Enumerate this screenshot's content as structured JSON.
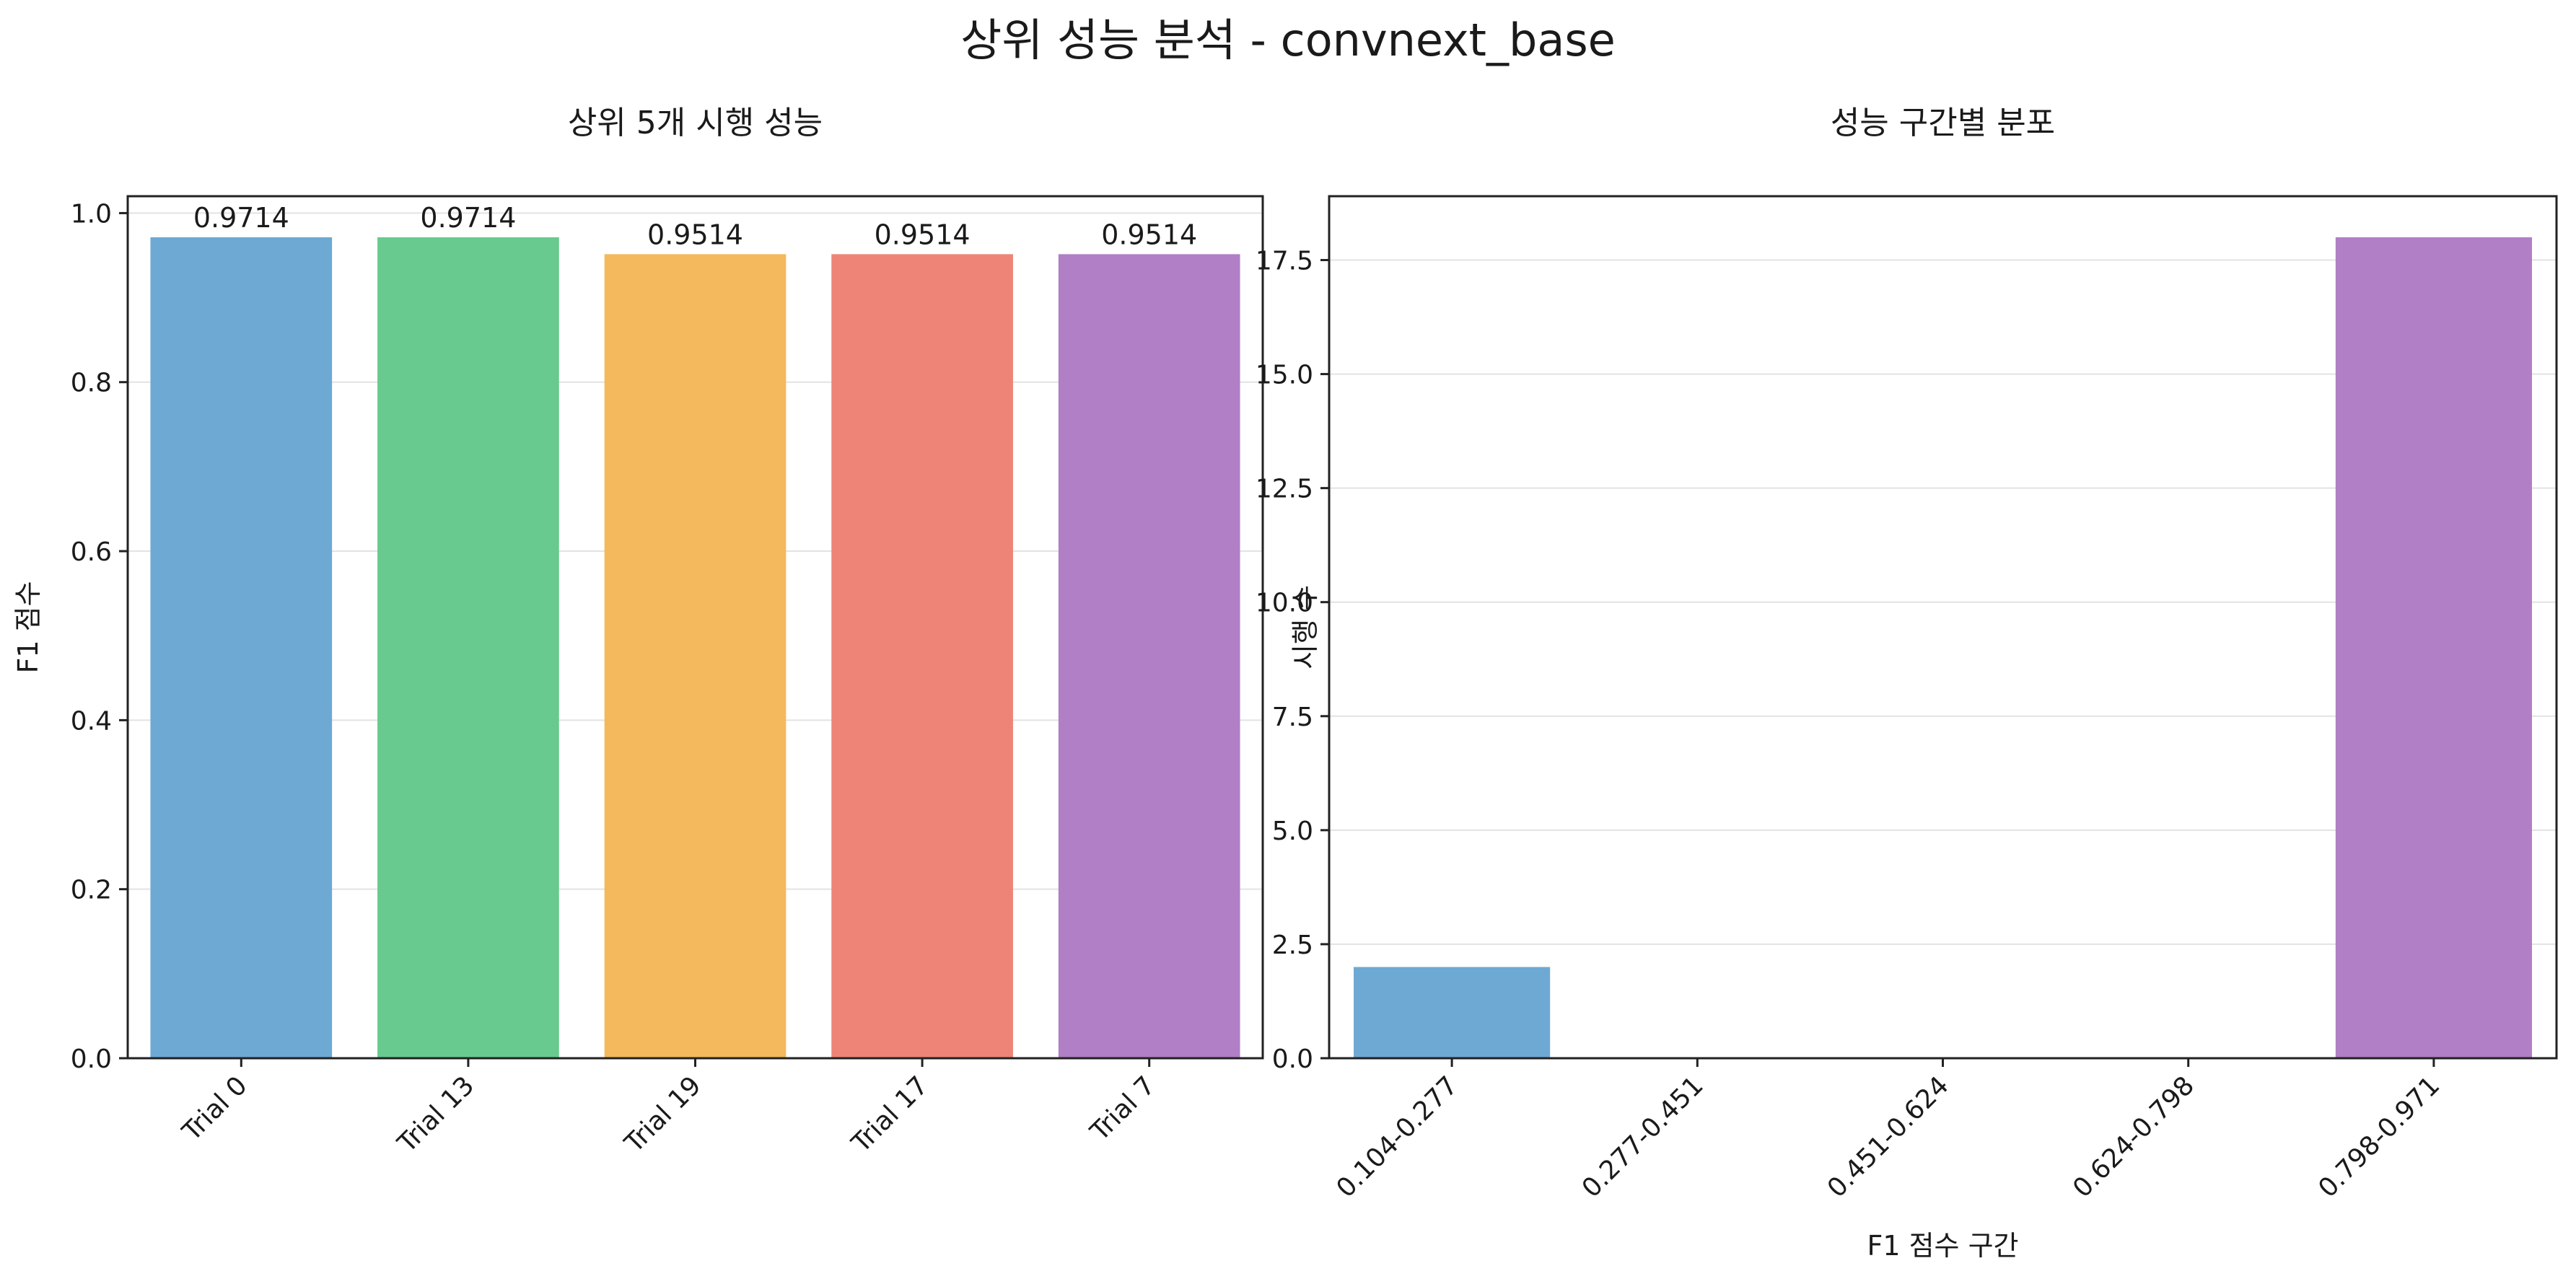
{
  "figure": {
    "title": "상위 성능 분석 - convnext_base"
  },
  "chart_data": [
    {
      "type": "bar",
      "title": "상위 5개 시행 성능",
      "xlabel": "",
      "ylabel": "F1 점수",
      "categories": [
        "Trial 0",
        "Trial 13",
        "Trial 19",
        "Trial 17",
        "Trial 7"
      ],
      "values": [
        0.9714,
        0.9714,
        0.9514,
        0.9514,
        0.9514
      ],
      "value_labels": [
        "0.9714",
        "0.9714",
        "0.9514",
        "0.9514",
        "0.9514"
      ],
      "colors": [
        "#6ea9d4",
        "#68ca8e",
        "#f4b95c",
        "#ee8478",
        "#b07fc5"
      ],
      "ylim": [
        0,
        1.02
      ],
      "yticks": [
        0.0,
        0.2,
        0.4,
        0.6,
        0.8,
        1.0
      ],
      "ytick_labels": [
        "0.0",
        "0.2",
        "0.4",
        "0.6",
        "0.8",
        "1.0"
      ],
      "grid": "y",
      "legend": "none"
    },
    {
      "type": "bar",
      "title": "성능 구간별 분포",
      "xlabel": "F1 점수 구간",
      "ylabel": "시행 수",
      "categories": [
        "0.104-0.277",
        "0.277-0.451",
        "0.451-0.624",
        "0.624-0.798",
        "0.798-0.971"
      ],
      "values": [
        2,
        0,
        0,
        0,
        18
      ],
      "colors": [
        "#6ea9d4",
        "#68ca8e",
        "#f4b95c",
        "#ee8478",
        "#b07fc5"
      ],
      "ylim": [
        0,
        18.9
      ],
      "yticks": [
        0.0,
        2.5,
        5.0,
        7.5,
        10.0,
        12.5,
        15.0,
        17.5
      ],
      "ytick_labels": [
        "0.0",
        "2.5",
        "5.0",
        "7.5",
        "10.0",
        "12.5",
        "15.0",
        "17.5"
      ],
      "grid": "y",
      "legend": "none"
    }
  ]
}
